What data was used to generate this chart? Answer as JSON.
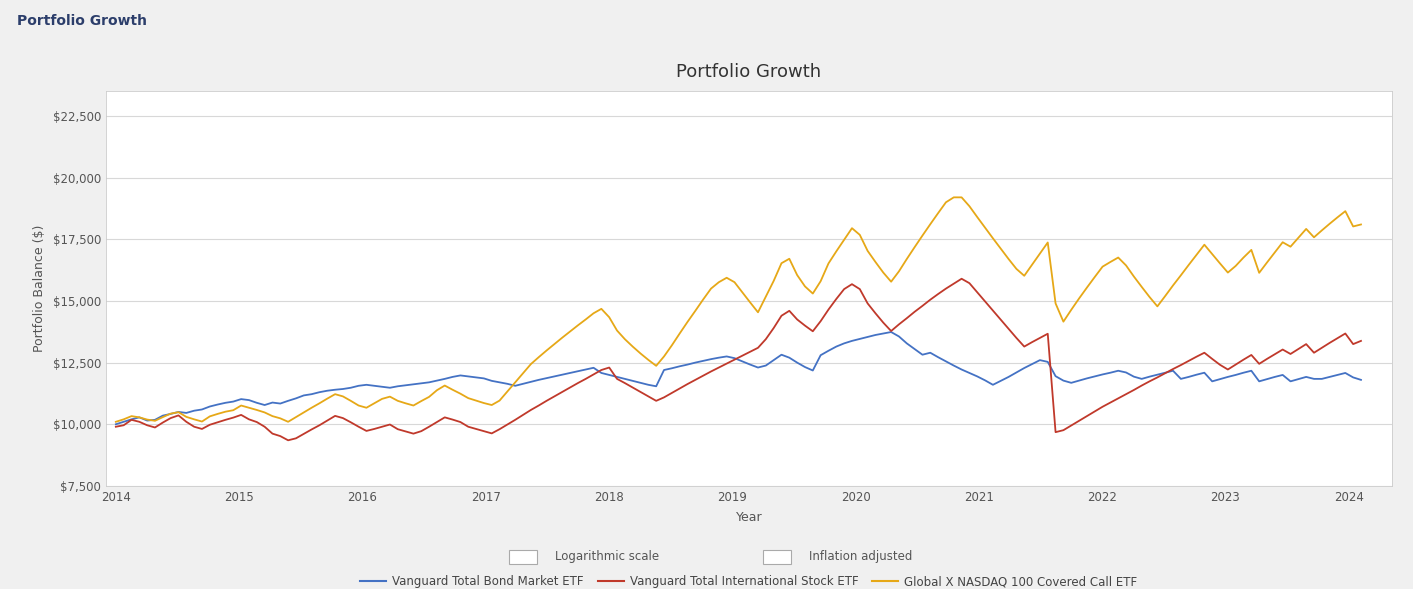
{
  "title": "Portfolio Growth",
  "header_title": "Portfolio Growth",
  "xlabel": "Year",
  "ylabel": "Portfolio Balance ($)",
  "plot_bg_color": "#ffffff",
  "header_bg_color": "#e8e8e8",
  "outer_bg_color": "#f0f0f0",
  "frame_bg_color": "#f7f7f7",
  "ylim": [
    7500,
    23500
  ],
  "yticks": [
    7500,
    10000,
    12500,
    15000,
    17500,
    20000,
    22500
  ],
  "ytick_labels": [
    "$7,500",
    "$10,000",
    "$12,500",
    "$15,000",
    "$17,500",
    "$20,000",
    "$22,500"
  ],
  "xticks": [
    2014,
    2015,
    2016,
    2017,
    2018,
    2019,
    2020,
    2021,
    2022,
    2023,
    2024
  ],
  "series": {
    "bond": {
      "label": "Vanguard Total Bond Market ETF",
      "color": "#4472c4",
      "linewidth": 1.3
    },
    "intl": {
      "label": "Vanguard Total International Stock ETF",
      "color": "#c0392b",
      "linewidth": 1.3
    },
    "nasdaq": {
      "label": "Global X NASDAQ 100 Covered Call ETF",
      "color": "#e6a817",
      "linewidth": 1.3
    }
  },
  "checkboxes": [
    "Logarithmic scale",
    "Inflation adjusted"
  ],
  "title_fontsize": 13,
  "axis_label_fontsize": 9,
  "tick_fontsize": 8.5,
  "legend_fontsize": 8.5,
  "header_fontsize": 10,
  "bond_data": [
    10000,
    10100,
    10200,
    10280,
    10150,
    10180,
    10350,
    10420,
    10500,
    10460,
    10550,
    10600,
    10720,
    10800,
    10870,
    10920,
    11020,
    10980,
    10870,
    10780,
    10880,
    10840,
    10950,
    11050,
    11170,
    11220,
    11300,
    11360,
    11400,
    11430,
    11480,
    11560,
    11600,
    11560,
    11520,
    11480,
    11540,
    11580,
    11620,
    11660,
    11700,
    11770,
    11840,
    11920,
    11980,
    11940,
    11900,
    11860,
    11760,
    11700,
    11640,
    11560,
    11640,
    11720,
    11800,
    11870,
    11940,
    12010,
    12080,
    12150,
    12220,
    12290,
    12080,
    12000,
    11920,
    11840,
    11760,
    11680,
    11600,
    11540,
    12200,
    12270,
    12350,
    12420,
    12500,
    12570,
    12640,
    12700,
    12750,
    12680,
    12550,
    12420,
    12300,
    12380,
    12600,
    12820,
    12700,
    12500,
    12320,
    12180,
    12800,
    12980,
    13150,
    13280,
    13380,
    13460,
    13540,
    13620,
    13680,
    13740,
    13560,
    13280,
    13050,
    12820,
    12900,
    12720,
    12550,
    12380,
    12220,
    12080,
    11940,
    11780,
    11600,
    11760,
    11920,
    12100,
    12280,
    12440,
    12600,
    12530,
    11950,
    11770,
    11680,
    11770,
    11860,
    11940,
    12020,
    12090,
    12170,
    12100,
    11930,
    11840,
    11930,
    12010,
    12090,
    12170,
    11840,
    11920,
    12010,
    12090,
    11740,
    11830,
    11920,
    12000,
    12090,
    12170,
    11740,
    11830,
    11920,
    12000,
    11740,
    11830,
    11920,
    11840,
    11840,
    11920,
    12000,
    12080,
    11900,
    11800
  ],
  "intl_data": [
    9900,
    9960,
    10180,
    10100,
    9960,
    9870,
    10070,
    10250,
    10360,
    10100,
    9900,
    9810,
    9980,
    10080,
    10180,
    10270,
    10380,
    10200,
    10090,
    9900,
    9620,
    9520,
    9350,
    9430,
    9610,
    9790,
    9960,
    10150,
    10340,
    10250,
    10080,
    9900,
    9730,
    9810,
    9900,
    9990,
    9800,
    9710,
    9620,
    9720,
    9900,
    10090,
    10280,
    10190,
    10090,
    9900,
    9810,
    9720,
    9630,
    9800,
    9990,
    10180,
    10380,
    10580,
    10760,
    10950,
    11130,
    11310,
    11490,
    11670,
    11840,
    12020,
    12200,
    12300,
    11840,
    11670,
    11490,
    11310,
    11130,
    10950,
    11090,
    11270,
    11450,
    11630,
    11800,
    11970,
    12140,
    12300,
    12460,
    12620,
    12780,
    12940,
    13100,
    13450,
    13900,
    14400,
    14600,
    14250,
    14000,
    13770,
    14180,
    14650,
    15080,
    15480,
    15680,
    15480,
    14900,
    14500,
    14120,
    13780,
    14050,
    14300,
    14560,
    14800,
    15050,
    15280,
    15500,
    15700,
    15900,
    15720,
    15350,
    14980,
    14610,
    14240,
    13870,
    13500,
    13150,
    13330,
    13500,
    13670,
    9680,
    9760,
    9950,
    10140,
    10330,
    10520,
    10710,
    10880,
    11050,
    11220,
    11390,
    11570,
    11740,
    11900,
    12070,
    12240,
    12400,
    12570,
    12740,
    12900,
    12650,
    12410,
    12220,
    12420,
    12620,
    12810,
    12450,
    12650,
    12840,
    13030,
    12850,
    13050,
    13250,
    12900,
    13100,
    13300,
    13490,
    13680,
    13250,
    13380
  ],
  "nasdaq_data": [
    10100,
    10200,
    10330,
    10280,
    10190,
    10140,
    10290,
    10430,
    10490,
    10300,
    10200,
    10110,
    10320,
    10420,
    10510,
    10570,
    10760,
    10670,
    10580,
    10480,
    10330,
    10240,
    10100,
    10290,
    10480,
    10670,
    10850,
    11040,
    11220,
    11130,
    10950,
    10760,
    10670,
    10850,
    11030,
    11120,
    10950,
    10850,
    10760,
    10940,
    11110,
    11380,
    11570,
    11400,
    11240,
    11060,
    10960,
    10860,
    10780,
    10960,
    11330,
    11700,
    12070,
    12440,
    12720,
    12990,
    13250,
    13510,
    13760,
    14010,
    14250,
    14500,
    14680,
    14340,
    13800,
    13450,
    13150,
    12870,
    12610,
    12370,
    12750,
    13200,
    13680,
    14150,
    14600,
    15060,
    15500,
    15760,
    15940,
    15760,
    15350,
    14940,
    14540,
    15170,
    15810,
    16530,
    16710,
    16050,
    15590,
    15300,
    15800,
    16520,
    17010,
    17480,
    17950,
    17680,
    17030,
    16580,
    16150,
    15780,
    16200,
    16700,
    17180,
    17650,
    18110,
    18560,
    19000,
    19200,
    19200,
    18840,
    18400,
    17970,
    17540,
    17120,
    16700,
    16300,
    16020,
    16470,
    16920,
    17370,
    14900,
    14160,
    14640,
    15100,
    15540,
    15970,
    16390,
    16580,
    16760,
    16440,
    15990,
    15570,
    15160,
    14780,
    15200,
    15630,
    16040,
    16460,
    16870,
    17280,
    16900,
    16520,
    16150,
    16420,
    16760,
    17070,
    16140,
    16560,
    16970,
    17380,
    17200,
    17560,
    17920,
    17580,
    17860,
    18130,
    18390,
    18640,
    18020,
    18100
  ]
}
